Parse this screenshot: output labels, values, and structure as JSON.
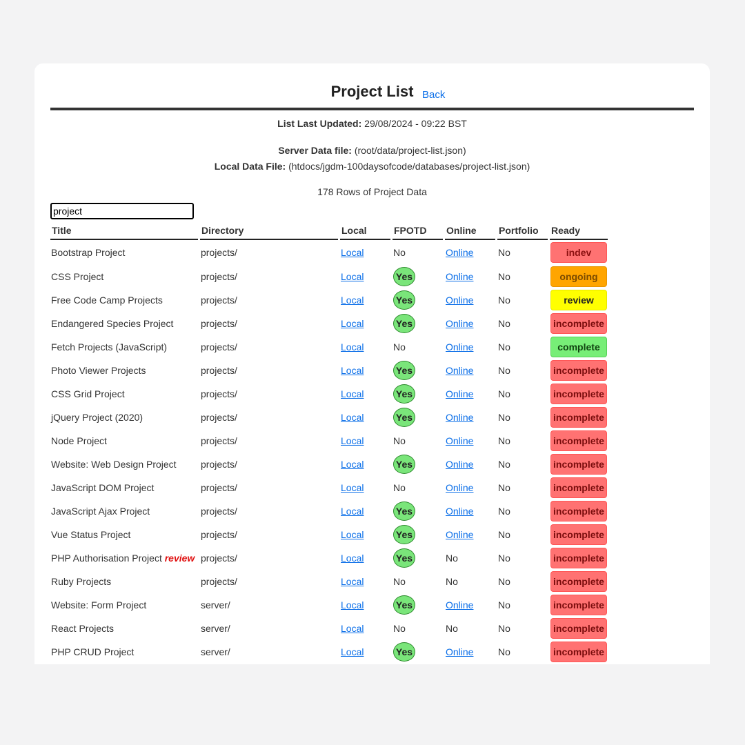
{
  "header": {
    "title": "Project List",
    "back_label": "Back"
  },
  "meta": {
    "updated_label": "List Last Updated:",
    "updated_value": "29/08/2024 - 09:22 BST",
    "server_label": "Server Data file:",
    "server_value": "(root/data/project-list.json)",
    "local_label": "Local Data File:",
    "local_value": "(htdocs/jgdm-100daysofcode/databases/project-list.json)",
    "rows_count": "178 Rows of Project Data"
  },
  "search": {
    "value": "project"
  },
  "table": {
    "columns": [
      "Title",
      "Directory",
      "Local",
      "FPOTD",
      "Online",
      "Portfolio",
      "Ready"
    ],
    "rows": [
      {
        "title": "Bootstrap Project",
        "tag": "",
        "dir": "projects/",
        "local": "Local",
        "fpotd": "No",
        "online": "Online",
        "portfolio": "No",
        "ready": "indev"
      },
      {
        "title": "CSS Project",
        "tag": "",
        "dir": "projects/",
        "local": "Local",
        "fpotd": "Yes",
        "online": "Online",
        "portfolio": "No",
        "ready": "ongoing"
      },
      {
        "title": "Free Code Camp Projects",
        "tag": "",
        "dir": "projects/",
        "local": "Local",
        "fpotd": "Yes",
        "online": "Online",
        "portfolio": "No",
        "ready": "review"
      },
      {
        "title": "Endangered Species Project",
        "tag": "",
        "dir": "projects/",
        "local": "Local",
        "fpotd": "Yes",
        "online": "Online",
        "portfolio": "No",
        "ready": "incomplete"
      },
      {
        "title": "Fetch Projects (JavaScript)",
        "tag": "",
        "dir": "projects/",
        "local": "Local",
        "fpotd": "No",
        "online": "Online",
        "portfolio": "No",
        "ready": "complete"
      },
      {
        "title": "Photo Viewer Projects",
        "tag": "",
        "dir": "projects/",
        "local": "Local",
        "fpotd": "Yes",
        "online": "Online",
        "portfolio": "No",
        "ready": "incomplete"
      },
      {
        "title": "CSS Grid Project",
        "tag": "",
        "dir": "projects/",
        "local": "Local",
        "fpotd": "Yes",
        "online": "Online",
        "portfolio": "No",
        "ready": "incomplete"
      },
      {
        "title": "jQuery Project (2020)",
        "tag": "",
        "dir": "projects/",
        "local": "Local",
        "fpotd": "Yes",
        "online": "Online",
        "portfolio": "No",
        "ready": "incomplete"
      },
      {
        "title": "Node Project",
        "tag": "",
        "dir": "projects/",
        "local": "Local",
        "fpotd": "No",
        "online": "Online",
        "portfolio": "No",
        "ready": "incomplete"
      },
      {
        "title": "Website: Web Design Project",
        "tag": "",
        "dir": "projects/",
        "local": "Local",
        "fpotd": "Yes",
        "online": "Online",
        "portfolio": "No",
        "ready": "incomplete"
      },
      {
        "title": "JavaScript DOM Project",
        "tag": "",
        "dir": "projects/",
        "local": "Local",
        "fpotd": "No",
        "online": "Online",
        "portfolio": "No",
        "ready": "incomplete"
      },
      {
        "title": "JavaScript Ajax Project",
        "tag": "",
        "dir": "projects/",
        "local": "Local",
        "fpotd": "Yes",
        "online": "Online",
        "portfolio": "No",
        "ready": "incomplete"
      },
      {
        "title": "Vue Status Project",
        "tag": "",
        "dir": "projects/",
        "local": "Local",
        "fpotd": "Yes",
        "online": "Online",
        "portfolio": "No",
        "ready": "incomplete"
      },
      {
        "title": "PHP Authorisation Project",
        "tag": "review",
        "dir": "projects/",
        "local": "Local",
        "fpotd": "Yes",
        "online": "No",
        "portfolio": "No",
        "ready": "incomplete"
      },
      {
        "title": "Ruby Projects",
        "tag": "",
        "dir": "projects/",
        "local": "Local",
        "fpotd": "No",
        "online": "No",
        "portfolio": "No",
        "ready": "incomplete"
      },
      {
        "title": "Website: Form Project",
        "tag": "",
        "dir": "server/",
        "local": "Local",
        "fpotd": "Yes",
        "online": "Online",
        "portfolio": "No",
        "ready": "incomplete"
      },
      {
        "title": "React Projects",
        "tag": "",
        "dir": "server/",
        "local": "Local",
        "fpotd": "No",
        "online": "No",
        "portfolio": "No",
        "ready": "incomplete"
      },
      {
        "title": "PHP CRUD Project",
        "tag": "",
        "dir": "server/",
        "local": "Local",
        "fpotd": "Yes",
        "online": "Online",
        "portfolio": "No",
        "ready": "incomplete"
      }
    ]
  },
  "colors": {
    "link": "#0a6ee8",
    "yes_badge": "#7ae57a",
    "indev": "#ff7272",
    "ongoing": "#ffa500",
    "review": "#ffff00",
    "incomplete": "#ff7272",
    "complete": "#77ee77",
    "review_tag": "#e01010"
  }
}
